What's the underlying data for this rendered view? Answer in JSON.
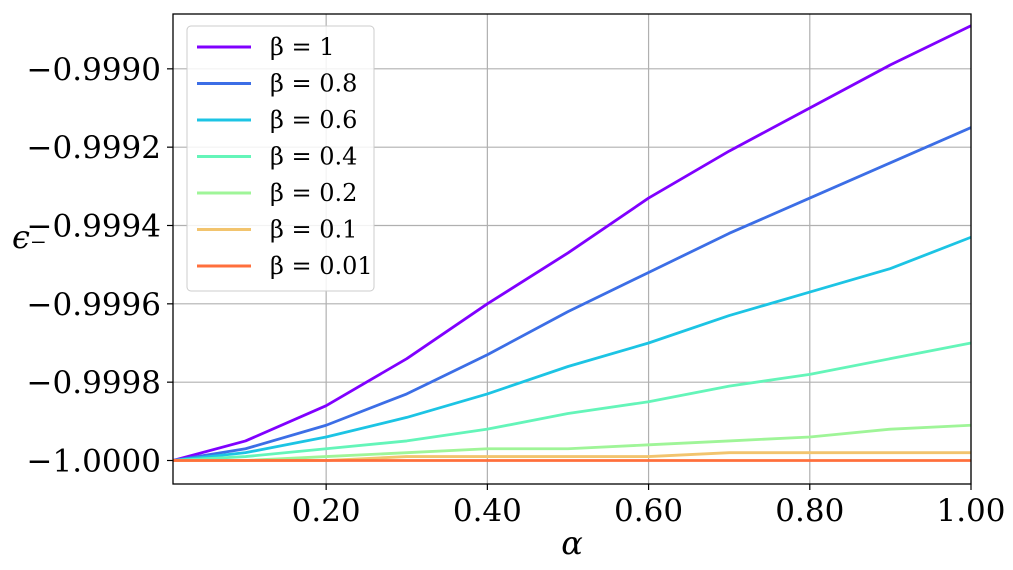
{
  "chart_data": {
    "type": "line",
    "title": "",
    "xlabel": "α",
    "ylabel": "ϵ₋",
    "xlim": [
      0.01,
      1.0
    ],
    "ylim": [
      -1.00006,
      -0.99886
    ],
    "grid": true,
    "legend_position": "top-left",
    "x_ticks": [
      0.2,
      0.4,
      0.6,
      0.8,
      1.0
    ],
    "x_tick_labels": [
      "0.20",
      "0.40",
      "0.60",
      "0.80",
      "1.00"
    ],
    "y_ticks": [
      -1.0,
      -0.9998,
      -0.9996,
      -0.9994,
      -0.9992,
      -0.999
    ],
    "y_tick_labels": [
      "−1.0000",
      "−0.9998",
      "−0.9996",
      "−0.9994",
      "−0.9992",
      "−0.9990"
    ],
    "x": [
      0.01,
      0.1,
      0.2,
      0.3,
      0.4,
      0.5,
      0.6,
      0.7,
      0.8,
      0.9,
      1.0
    ],
    "series": [
      {
        "name": "β = 1",
        "color": "#8000ff",
        "values": [
          -1.0,
          -0.99995,
          -0.99986,
          -0.99974,
          -0.9996,
          -0.99947,
          -0.99933,
          -0.99921,
          -0.9991,
          -0.99899,
          -0.99889
        ]
      },
      {
        "name": "β = 0.8",
        "color": "#3c6ee6",
        "values": [
          -1.0,
          -0.99997,
          -0.99991,
          -0.99983,
          -0.99973,
          -0.99962,
          -0.99952,
          -0.99942,
          -0.99933,
          -0.99924,
          -0.99915
        ]
      },
      {
        "name": "β = 0.6",
        "color": "#1cc4e4",
        "values": [
          -1.0,
          -0.99998,
          -0.99994,
          -0.99989,
          -0.99983,
          -0.99976,
          -0.9997,
          -0.99963,
          -0.99957,
          -0.99951,
          -0.99943
        ]
      },
      {
        "name": "β = 0.4",
        "color": "#64f5b9",
        "values": [
          -1.0,
          -0.99999,
          -0.99997,
          -0.99995,
          -0.99992,
          -0.99988,
          -0.99985,
          -0.99981,
          -0.99978,
          -0.99974,
          -0.9997
        ]
      },
      {
        "name": "β = 0.2",
        "color": "#9ff598",
        "values": [
          -1.0,
          -1.0,
          -0.99999,
          -0.99998,
          -0.99997,
          -0.99997,
          -0.99996,
          -0.99995,
          -0.99994,
          -0.99992,
          -0.99991
        ]
      },
      {
        "name": "β = 0.1",
        "color": "#f2c46e",
        "values": [
          -1.0,
          -1.0,
          -1.0,
          -0.99999,
          -0.99999,
          -0.99999,
          -0.99999,
          -0.99998,
          -0.99998,
          -0.99998,
          -0.99998
        ]
      },
      {
        "name": "β = 0.01",
        "color": "#ff6f3c",
        "values": [
          -1.0,
          -1.0,
          -1.0,
          -1.0,
          -1.0,
          -1.0,
          -1.0,
          -1.0,
          -1.0,
          -1.0,
          -1.0
        ]
      }
    ]
  }
}
